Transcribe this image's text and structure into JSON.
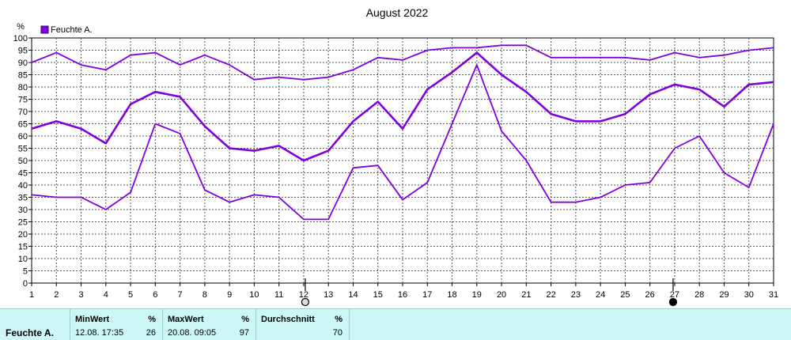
{
  "chart_data": {
    "type": "line",
    "title": "August 2022",
    "ylabel": "%",
    "ylim": [
      0,
      100
    ],
    "yticks": [
      0,
      5,
      10,
      15,
      20,
      25,
      30,
      35,
      40,
      45,
      50,
      55,
      60,
      65,
      70,
      75,
      80,
      85,
      90,
      95,
      100
    ],
    "x": [
      1,
      2,
      3,
      4,
      5,
      6,
      7,
      8,
      9,
      10,
      11,
      12,
      13,
      14,
      15,
      16,
      17,
      18,
      19,
      20,
      21,
      22,
      23,
      24,
      25,
      26,
      27,
      28,
      29,
      30,
      31
    ],
    "grid": true,
    "legend": "top-left",
    "color": "#8000e0",
    "series": [
      {
        "name": "Feuchte A.",
        "role": "max",
        "values": [
          90,
          94,
          89,
          87,
          93,
          94,
          89,
          93,
          89,
          83,
          84,
          83,
          84,
          87,
          92,
          91,
          95,
          96,
          96,
          97,
          97,
          92,
          92,
          92,
          92,
          91,
          94,
          92,
          93,
          95,
          96
        ]
      },
      {
        "name": "",
        "role": "avg",
        "values": [
          63,
          66,
          63,
          57,
          73,
          78,
          76,
          64,
          55,
          54,
          56,
          50,
          54,
          66,
          74,
          63,
          79,
          86,
          94,
          85,
          78,
          69,
          66,
          66,
          69,
          77,
          81,
          79,
          72,
          81,
          82
        ]
      },
      {
        "name": "",
        "role": "min",
        "values": [
          36,
          35,
          35,
          30,
          37,
          65,
          61,
          38,
          33,
          36,
          35,
          26,
          26,
          47,
          48,
          34,
          41,
          65,
          89,
          62,
          50,
          33,
          33,
          35,
          40,
          41,
          55,
          60,
          45,
          39,
          65
        ]
      }
    ],
    "markers": [
      {
        "x": 12,
        "symbol": "open-circle"
      },
      {
        "x": 27,
        "symbol": "filled-circle"
      }
    ]
  },
  "stats": {
    "row_label": "Feuchte A.",
    "min": {
      "label": "MinWert",
      "unit": "%",
      "time": "12.08.  17:35",
      "value": "26"
    },
    "max": {
      "label": "MaxWert",
      "unit": "%",
      "time": "20.08.  09:05",
      "value": "97"
    },
    "avg": {
      "label": "Durchschnitt",
      "unit": "%",
      "value": "70"
    }
  }
}
